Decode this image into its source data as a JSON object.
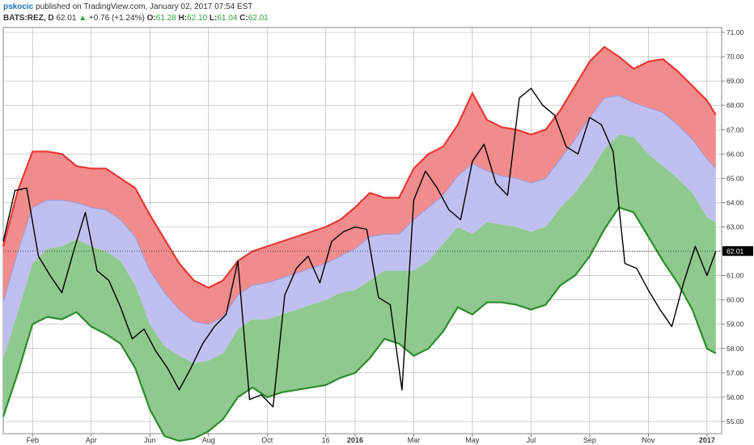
{
  "header": {
    "user": "pskocic",
    "published": "published on TradingView.com, January 02, 2017 07:54 EST",
    "symbol": "BATS:REZ, D",
    "last": "62.01",
    "up_arrow": "▲",
    "change": "+0.76 (+1.24%)",
    "o_label": "O:",
    "o_val": "61.28",
    "h_label": "H:",
    "h_val": "62.10",
    "l_label": "L:",
    "l_val": "61.04",
    "c_label": "C:",
    "c_val": "62.01"
  },
  "colors": {
    "price": "#000000",
    "upper_band": "#e53935",
    "upper_fill": "#f28c8c",
    "middle_fill": "#c0c0f0",
    "lower_band": "#2e8b2e",
    "lower_fill": "#8fc98f",
    "grid": "#b0b0b0",
    "last_label_bg": "#000000"
  },
  "chart_data": {
    "type": "line",
    "title": "",
    "xlabel": "",
    "ylabel": "",
    "ylim": [
      54.5,
      71.2
    ],
    "xlim": [
      0,
      24.5
    ],
    "grid": true,
    "y_ticks": [
      55.0,
      56.0,
      57.0,
      58.0,
      59.0,
      60.0,
      61.0,
      62.0,
      63.0,
      64.0,
      65.0,
      66.0,
      67.0,
      68.0,
      69.0,
      70.0,
      71.0
    ],
    "y_tick_labels": [
      "55.00",
      "56.00",
      "57.00",
      "58.00",
      "59.00",
      "60.00",
      "61.00",
      "62.00",
      "63.00",
      "64.00",
      "65.00",
      "66.00",
      "67.00",
      "68.00",
      "69.00",
      "70.00",
      "71.00"
    ],
    "x_ticks": [
      1,
      3,
      5,
      7,
      9,
      11,
      12,
      14,
      16,
      18,
      20,
      22,
      24
    ],
    "x_tick_labels": [
      "Feb",
      "Apr",
      "Jun",
      "Aug",
      "Oct",
      "16",
      "2016",
      "Mar",
      "May",
      "Jul",
      "Sep",
      "Nov",
      "2017"
    ],
    "x_tick_bold": [
      false,
      false,
      false,
      false,
      false,
      false,
      true,
      false,
      false,
      false,
      false,
      false,
      true
    ],
    "last_value": 62.01,
    "last_value_label": "62.01",
    "series": [
      {
        "role": "upper",
        "x": [
          0,
          0.5,
          1,
          1.5,
          2,
          2.5,
          3,
          3.5,
          4,
          4.5,
          5,
          5.5,
          6,
          6.5,
          7,
          7.5,
          8,
          8.5,
          9,
          9.5,
          10,
          10.5,
          11,
          11.5,
          12,
          12.5,
          13,
          13.5,
          14,
          14.5,
          15,
          15.5,
          16,
          16.5,
          17,
          17.5,
          18,
          18.5,
          19,
          19.5,
          20,
          20.5,
          21,
          21.5,
          22,
          22.5,
          23,
          23.5,
          24,
          24.3
        ],
        "y": [
          62.2,
          64.5,
          66.1,
          66.1,
          66.0,
          65.5,
          65.4,
          65.4,
          65.0,
          64.6,
          63.5,
          62.5,
          61.5,
          60.8,
          60.5,
          60.8,
          61.6,
          62.0,
          62.2,
          62.4,
          62.6,
          62.8,
          63.0,
          63.3,
          63.8,
          64.4,
          64.2,
          64.2,
          65.4,
          66.0,
          66.3,
          67.2,
          68.5,
          67.4,
          67.1,
          67.0,
          66.8,
          67.0,
          67.8,
          68.8,
          69.8,
          70.4,
          70.0,
          69.5,
          69.8,
          69.9,
          69.4,
          68.8,
          68.2,
          67.6
        ]
      },
      {
        "role": "basis",
        "x": [
          0,
          0.5,
          1,
          1.5,
          2,
          2.5,
          3,
          3.5,
          4,
          4.5,
          5,
          5.5,
          6,
          6.5,
          7,
          7.5,
          8,
          8.5,
          9,
          9.5,
          10,
          10.5,
          11,
          11.5,
          12,
          12.5,
          13,
          13.5,
          14,
          14.5,
          15,
          15.5,
          16,
          16.5,
          17,
          17.5,
          18,
          18.5,
          19,
          19.5,
          20,
          20.5,
          21,
          21.5,
          22,
          22.5,
          23,
          23.5,
          24,
          24.3
        ],
        "y": [
          59.9,
          62.0,
          63.8,
          64.1,
          64.1,
          64.0,
          63.8,
          63.7,
          63.3,
          62.6,
          61.2,
          60.3,
          59.6,
          59.1,
          59.0,
          59.3,
          60.2,
          60.6,
          60.7,
          60.9,
          61.1,
          61.3,
          61.5,
          61.8,
          62.1,
          62.6,
          62.7,
          62.7,
          63.3,
          63.8,
          64.3,
          65.1,
          65.6,
          65.3,
          65.1,
          65.0,
          64.8,
          65.0,
          65.8,
          66.6,
          67.5,
          68.3,
          68.4,
          68.1,
          67.9,
          67.7,
          67.2,
          66.6,
          65.8,
          65.4
        ]
      },
      {
        "role": "lower",
        "x": [
          0,
          0.5,
          1,
          1.5,
          2,
          2.5,
          3,
          3.5,
          4,
          4.5,
          5,
          5.5,
          6,
          6.5,
          7,
          7.5,
          8,
          8.5,
          9,
          9.5,
          10,
          10.5,
          11,
          11.5,
          12,
          12.5,
          13,
          13.5,
          14,
          14.5,
          15,
          15.5,
          16,
          16.5,
          17,
          17.5,
          18,
          18.5,
          19,
          19.5,
          20,
          20.5,
          21,
          21.5,
          22,
          22.5,
          23,
          23.5,
          24,
          24.3
        ],
        "y": [
          57.6,
          59.5,
          61.5,
          62.1,
          62.2,
          62.5,
          62.2,
          62.0,
          61.6,
          60.6,
          59.0,
          58.1,
          57.7,
          57.4,
          57.5,
          57.8,
          58.8,
          59.2,
          59.2,
          59.4,
          59.6,
          59.8,
          60.0,
          60.3,
          60.4,
          60.8,
          61.2,
          61.2,
          61.2,
          61.6,
          62.3,
          63.0,
          62.7,
          63.2,
          63.1,
          63.0,
          62.8,
          63.0,
          63.8,
          64.4,
          65.2,
          66.2,
          66.8,
          66.7,
          66.0,
          65.5,
          65.0,
          64.4,
          63.4,
          63.2
        ]
      },
      {
        "role": "price",
        "x": [
          0,
          0.4,
          0.8,
          1.2,
          1.6,
          2.0,
          2.4,
          2.8,
          3.2,
          3.6,
          4.0,
          4.4,
          4.8,
          5.2,
          5.6,
          6.0,
          6.4,
          6.8,
          7.2,
          7.6,
          8.0,
          8.4,
          8.8,
          9.2,
          9.6,
          10.0,
          10.4,
          10.8,
          11.2,
          11.6,
          12.0,
          12.4,
          12.8,
          13.2,
          13.6,
          14.0,
          14.4,
          14.8,
          15.2,
          15.6,
          16.0,
          16.4,
          16.8,
          17.2,
          17.6,
          18.0,
          18.4,
          18.8,
          19.2,
          19.6,
          20.0,
          20.4,
          20.8,
          21.2,
          21.6,
          22.0,
          22.4,
          22.8,
          23.2,
          23.6,
          24.0,
          24.3
        ],
        "y": [
          62.4,
          64.5,
          64.6,
          61.8,
          61.0,
          60.3,
          62.0,
          63.6,
          61.2,
          60.8,
          59.7,
          58.4,
          58.8,
          57.9,
          57.2,
          56.3,
          57.2,
          58.2,
          58.9,
          59.4,
          61.6,
          55.9,
          56.1,
          55.6,
          60.2,
          61.3,
          61.8,
          60.7,
          62.4,
          62.8,
          63.0,
          62.9,
          60.1,
          59.8,
          56.3,
          64.1,
          65.3,
          64.6,
          63.7,
          63.3,
          65.7,
          66.4,
          64.8,
          64.3,
          68.3,
          68.7,
          68.0,
          67.6,
          66.3,
          66.0,
          67.5,
          67.2,
          66.1,
          61.5,
          61.3,
          60.4,
          59.6,
          58.9,
          60.7,
          62.2,
          61.0,
          62.0
        ]
      }
    ],
    "lower_band_width": [
      2.4,
      2.5,
      2.5,
      2.8,
      3.0,
      3.0,
      3.3,
      3.4,
      3.4,
      3.4,
      3.5,
      3.7,
      3.5,
      3.1,
      2.9,
      2.7,
      2.8,
      2.8,
      3.2,
      3.2,
      3.3,
      3.4,
      3.5,
      3.5,
      3.4,
      3.2,
      2.8,
      3.0,
      3.5,
      3.6,
      3.6,
      3.3,
      3.3,
      3.3,
      3.2,
      3.2,
      3.2,
      3.2,
      3.2,
      3.4,
      3.4,
      3.3,
      3.0,
      3.1,
      3.4,
      3.9,
      4.3,
      4.8,
      5.4,
      5.4
    ]
  }
}
